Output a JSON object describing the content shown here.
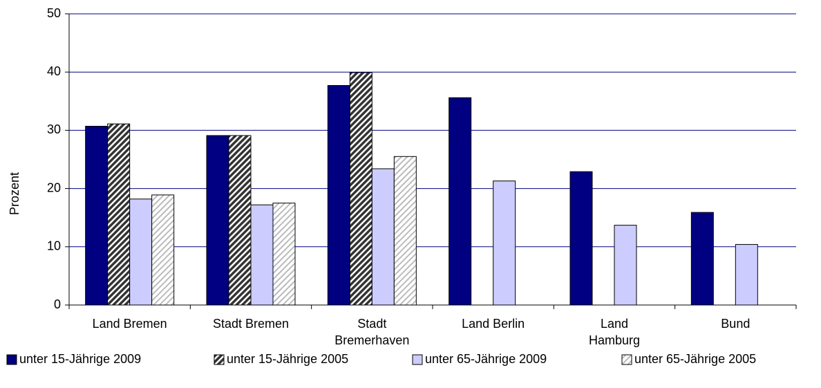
{
  "chart_data": {
    "type": "bar",
    "y_label": "Prozent",
    "categories": [
      "Land Bremen",
      "Stadt Bremen",
      "Stadt\nBremerhaven",
      "Land Berlin",
      "Land\nHamburg",
      "Bund"
    ],
    "series": [
      {
        "name": "unter 15-Jährige 2009",
        "color": "#000080",
        "hatch": false,
        "values": [
          30.7,
          29.1,
          37.7,
          35.6,
          22.9,
          15.9
        ]
      },
      {
        "name": "unter 15-Jährige 2005",
        "color": "#333333",
        "hatch": true,
        "values": [
          31.1,
          29.1,
          39.9,
          null,
          null,
          null
        ]
      },
      {
        "name": "unter 65-Jährige 2009",
        "color": "#ccccff",
        "hatch": false,
        "values": [
          18.2,
          17.2,
          23.4,
          21.3,
          13.7,
          10.4
        ]
      },
      {
        "name": "unter 65-Jährige 2005",
        "color": "#bbbbbb",
        "hatch": true,
        "values": [
          18.9,
          17.5,
          25.5,
          null,
          null,
          null
        ]
      }
    ],
    "ylim": [
      0,
      50
    ],
    "yticks": [
      0,
      10,
      20,
      30,
      40,
      50
    ],
    "grid": true,
    "grid_color": "#000080",
    "legend": "bottom"
  }
}
